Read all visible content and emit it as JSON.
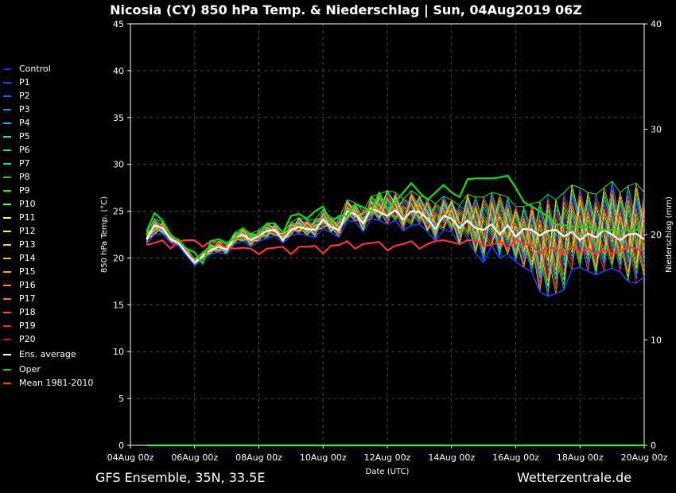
{
  "chart_data": {
    "type": "line",
    "title": "Nicosia  (CY)  850 hPa Temp. & Niederschlag | Sun, 04Aug2019 06Z",
    "xlabel": "Date (UTC)",
    "ylabel": "850 hPa Temp. (°C)",
    "y2label": "Niederschlag (mm)",
    "ylim": [
      0,
      45
    ],
    "y2lim": [
      0,
      40
    ],
    "yticks": [
      0,
      5,
      10,
      15,
      20,
      25,
      30,
      35,
      40,
      45
    ],
    "y2ticks": [
      0,
      10,
      20,
      30,
      40
    ],
    "xlim": [
      0,
      16
    ],
    "xticks": [
      {
        "day": 0,
        "label": "04Aug 00z"
      },
      {
        "day": 2,
        "label": "06Aug 00z"
      },
      {
        "day": 4,
        "label": "08Aug 00z"
      },
      {
        "day": 6,
        "label": "10Aug 00z"
      },
      {
        "day": 8,
        "label": "12Aug 00z"
      },
      {
        "day": 10,
        "label": "14Aug 00z"
      },
      {
        "day": 12,
        "label": "16Aug 00z"
      },
      {
        "day": 14,
        "label": "18Aug 00z"
      },
      {
        "day": 16,
        "label": "20Aug 00z"
      }
    ],
    "grid": true,
    "legend_placement": "left",
    "legend": [
      {
        "name": "Control",
        "color": "#2222ff"
      },
      {
        "name": "P1",
        "color": "#1a44ff"
      },
      {
        "name": "P2",
        "color": "#1a66ff"
      },
      {
        "name": "P3",
        "color": "#1a88ff"
      },
      {
        "name": "P4",
        "color": "#1aaaff"
      },
      {
        "name": "P5",
        "color": "#22dddd"
      },
      {
        "name": "P6",
        "color": "#22ddaa"
      },
      {
        "name": "P7",
        "color": "#22dd88"
      },
      {
        "name": "P8",
        "color": "#22cc44"
      },
      {
        "name": "P9",
        "color": "#33ee33"
      },
      {
        "name": "P10",
        "color": "#66ff22"
      },
      {
        "name": "P11",
        "color": "#ffff22"
      },
      {
        "name": "P12",
        "color": "#ffee44"
      },
      {
        "name": "P13",
        "color": "#ffcc22"
      },
      {
        "name": "P14",
        "color": "#ffbb22"
      },
      {
        "name": "P15",
        "color": "#ffaa00"
      },
      {
        "name": "P16",
        "color": "#ff8833"
      },
      {
        "name": "P17",
        "color": "#ff7722"
      },
      {
        "name": "P18",
        "color": "#ff5522"
      },
      {
        "name": "P19",
        "color": "#ee3322"
      },
      {
        "name": "P20",
        "color": "#cc2211"
      },
      {
        "name": "Ens. average",
        "color": "#ffffff"
      },
      {
        "name": "Oper",
        "color": "#22cc22"
      },
      {
        "name": "Mean 1981-2010",
        "color": "#ff3333"
      }
    ],
    "series_x_start_day": 0.5,
    "series_x_step_day": 0.25,
    "oper": [
      22.8,
      24.8,
      24.0,
      22.5,
      21.8,
      21.0,
      20.6,
      19.4,
      21.8,
      22.0,
      21.6,
      22.1,
      23.2,
      22.3,
      22.5,
      23.7,
      23.7,
      22.7,
      24.5,
      24.7,
      24.2,
      25.0,
      25.5,
      23.8,
      24.5,
      24.5,
      25.8,
      25.4,
      25.0,
      27.0,
      25.2,
      26.0,
      27.0,
      28.0,
      27.0,
      26.2,
      27.0,
      27.8,
      27.0,
      26.5,
      28.4,
      28.5,
      28.5,
      28.5,
      28.6,
      28.8,
      27.5,
      26.0,
      25.5,
      25.0,
      24.4,
      23.6,
      23.5,
      23.4,
      23.3,
      23.3,
      23.0,
      23.0,
      23.0,
      22.9,
      23.0,
      23.0,
      23.2
    ],
    "ens_average": [
      22.0,
      23.5,
      23.2,
      22.0,
      21.6,
      20.5,
      19.5,
      20.2,
      20.8,
      21.2,
      20.9,
      22.2,
      22.5,
      21.9,
      22.4,
      22.9,
      23.0,
      21.9,
      23.0,
      23.3,
      23.1,
      23.0,
      24.1,
      23.3,
      23.0,
      25.0,
      24.7,
      23.7,
      25.3,
      24.9,
      24.5,
      25.1,
      24.1,
      25.0,
      24.9,
      24.2,
      23.1,
      24.5,
      24.2,
      23.2,
      24.0,
      23.2,
      23.0,
      23.6,
      22.5,
      23.5,
      22.3,
      23.1,
      23.0,
      22.4,
      22.9,
      23.0,
      22.3,
      22.8,
      21.9,
      22.6,
      22.2,
      23.0,
      22.5,
      21.9,
      22.5,
      22.6,
      22.0
    ],
    "climate_mean": [
      21.4,
      21.6,
      21.9,
      21.0,
      21.8,
      21.9,
      21.9,
      21.2,
      21.8,
      21.6,
      21.1,
      21.0,
      21.1,
      21.0,
      20.4,
      21.0,
      21.1,
      21.2,
      20.4,
      21.2,
      21.2,
      21.3,
      20.5,
      21.3,
      21.4,
      21.8,
      21.0,
      21.5,
      21.6,
      21.7,
      20.8,
      21.3,
      21.5,
      21.8,
      21.0,
      21.5,
      21.8,
      21.9,
      21.7,
      21.5,
      21.9,
      21.9,
      21.3,
      21.4,
      21.8,
      21.0,
      22.0,
      21.5,
      21.4,
      20.5,
      21.1,
      21.0,
      20.4,
      21.2,
      20.6,
      21.0,
      20.4,
      20.8,
      20.5,
      20.7,
      21.2,
      21.0,
      20.7
    ],
    "member_spread_low": [
      21.5,
      22.5,
      22.6,
      21.6,
      21.3,
      20.2,
      19.2,
      19.8,
      20.4,
      20.6,
      20.4,
      21.5,
      21.8,
      21.2,
      21.8,
      22.1,
      22.4,
      21.6,
      22.4,
      22.6,
      22.4,
      22.2,
      23.2,
      22.7,
      22.2,
      24.0,
      23.9,
      22.8,
      24.2,
      24.0,
      23.6,
      24.0,
      22.9,
      23.5,
      23.6,
      22.8,
      21.8,
      23.0,
      22.8,
      21.4,
      22.0,
      20.5,
      19.5,
      21.3,
      20.0,
      20.4,
      19.6,
      19.0,
      18.5,
      16.4,
      15.9,
      16.2,
      16.6,
      18.8,
      19.0,
      18.6,
      18.2,
      18.6,
      18.9,
      18.5,
      17.5,
      17.3,
      18.0
    ],
    "member_spread_high": [
      22.6,
      24.2,
      23.8,
      22.4,
      22.0,
      21.0,
      19.9,
      20.6,
      21.4,
      21.8,
      21.4,
      22.7,
      23.2,
      22.6,
      23.0,
      23.7,
      23.7,
      22.6,
      23.8,
      24.3,
      24.1,
      24.1,
      25.2,
      24.3,
      24.2,
      26.2,
      25.9,
      25.0,
      26.6,
      26.8,
      27.2,
      27.0,
      26.3,
      27.2,
      26.6,
      26.4,
      25.8,
      26.6,
      26.2,
      25.6,
      26.8,
      26.5,
      26.5,
      27.0,
      26.8,
      26.5,
      25.5,
      25.5,
      25.8,
      26.0,
      26.8,
      26.2,
      27.0,
      27.8,
      27.5,
      27.0,
      26.8,
      27.5,
      28.2,
      27.0,
      27.7,
      28.0,
      27.0
    ],
    "precipitation": [
      0,
      0,
      0,
      0,
      0,
      0,
      0,
      0,
      0,
      0,
      0,
      0,
      0,
      0,
      0,
      0,
      0,
      0,
      0,
      0,
      0,
      0,
      0,
      0,
      0,
      0,
      0,
      0,
      0,
      0,
      0,
      0,
      0,
      0,
      0,
      0,
      0,
      0,
      0,
      0,
      0,
      0,
      0,
      0,
      0,
      0,
      0,
      0,
      0,
      0,
      0,
      0,
      0,
      0,
      0,
      0,
      0,
      0,
      0,
      0,
      0,
      0,
      0
    ]
  },
  "footer": {
    "left": "GFS Ensemble, 35N, 33.5E",
    "right": "Wetterzentrale.de"
  }
}
